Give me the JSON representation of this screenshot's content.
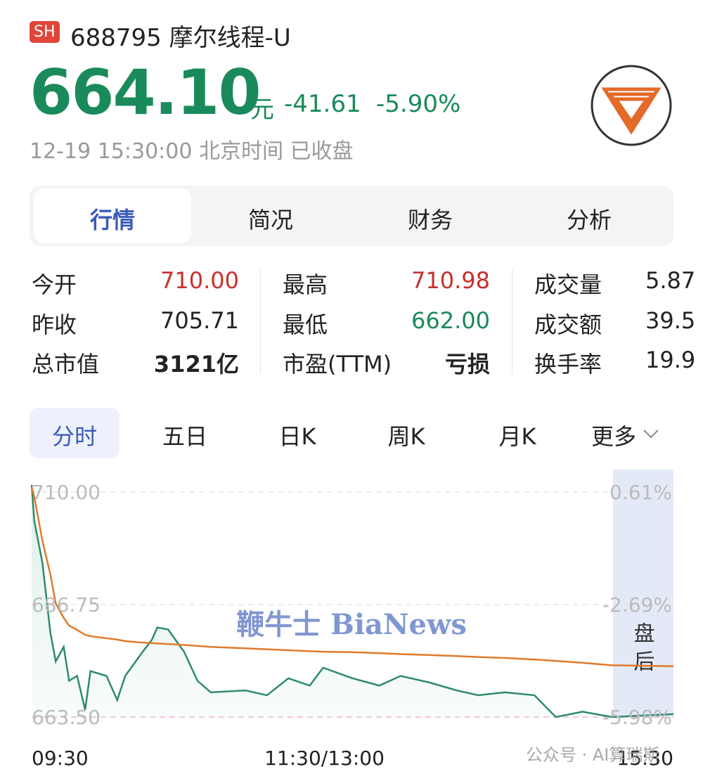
{
  "header": {
    "badge": "SH",
    "code": "688795",
    "name": "摩尔线程-U",
    "price": "664.10",
    "unit": "元",
    "change": "-41.61",
    "change_pct": "-5.90%",
    "time": "12-19 15:30:00",
    "timezone": "北京时间",
    "status": "已收盘"
  },
  "tabs": [
    "行情",
    "简况",
    "财务",
    "分析"
  ],
  "stats": [
    [
      {
        "label": "今开",
        "value": "710.00"
      },
      {
        "label": "最高",
        "value": "710.98"
      },
      {
        "label": "成交量",
        "value": "5.87"
      }
    ],
    [
      {
        "label": "昨收",
        "value": "705.71"
      },
      {
        "label": "最低",
        "value": "662.00"
      },
      {
        "label": "成交额",
        "value": "39.5"
      }
    ],
    [
      {
        "label": "总市值",
        "value": "3121亿"
      },
      {
        "label": "市盈(TTM)",
        "value": "亏损"
      },
      {
        "label": "换手率",
        "value": "19.9"
      }
    ]
  ],
  "periods": [
    "分时",
    "五日",
    "日K",
    "周K",
    "月K",
    "更多"
  ],
  "chart_data": {
    "type": "line",
    "x": [
      0,
      1,
      4,
      7,
      9,
      12,
      14,
      17,
      20,
      22,
      28,
      32,
      35,
      41,
      45,
      47,
      51,
      57,
      62,
      67,
      80,
      88,
      96,
      104,
      109,
      120,
      130,
      138,
      149,
      159,
      167,
      177,
      188,
      196,
      206,
      217,
      240
    ],
    "xlim": [
      0,
      240
    ],
    "xticks": [
      {
        "value": 0,
        "label": "09:30"
      },
      {
        "value": 120,
        "label": "11:30/13:00"
      },
      {
        "value": 240,
        "label": "15:30"
      }
    ],
    "ylim": [
      663.5,
      710
    ],
    "yticks": [
      {
        "value": 710,
        "label": "710.00"
      },
      {
        "value": 686.75,
        "label": "686.75"
      },
      {
        "value": 663.5,
        "label": "663.50"
      }
    ],
    "y2lim": [
      -5.98,
      0.61
    ],
    "y2ticks": [
      {
        "value": 0.61,
        "label": "0.61%"
      },
      {
        "value": -2.69,
        "label": "-2.69%"
      },
      {
        "value": -5.98,
        "label": "-5.98%"
      }
    ],
    "series": [
      {
        "color": "#2e8b6a",
        "values": [
          711.5,
          704,
          695.5,
          681,
          675,
          678,
          671,
          672,
          665,
          673,
          672,
          667,
          672,
          676.6,
          679.5,
          682,
          681.6,
          677,
          671,
          668.6,
          669,
          668,
          671.5,
          670,
          673.7,
          671.5,
          670,
          672,
          670.6,
          669,
          668,
          668.6,
          668,
          663.5,
          664.6,
          663.5,
          664.1
        ]
      },
      {
        "color": "#e07a2c",
        "values": [
          711,
          709,
          700,
          693,
          687,
          684,
          682.4,
          681.5,
          680.5,
          680.2,
          679.8,
          679.5,
          679.2,
          678.9,
          678.8,
          678.7,
          678.6,
          678.4,
          678.2,
          678,
          677.7,
          677.5,
          677.3,
          677.1,
          677,
          676.9,
          676.7,
          676.5,
          676.3,
          676.1,
          675.9,
          675.7,
          675.4,
          675.1,
          674.7,
          674.2,
          674
        ]
      }
    ],
    "after_hours": "盘后",
    "watermark": "鞭牛士 BiaNews",
    "source": "公众号 · AI算瑞斯"
  }
}
